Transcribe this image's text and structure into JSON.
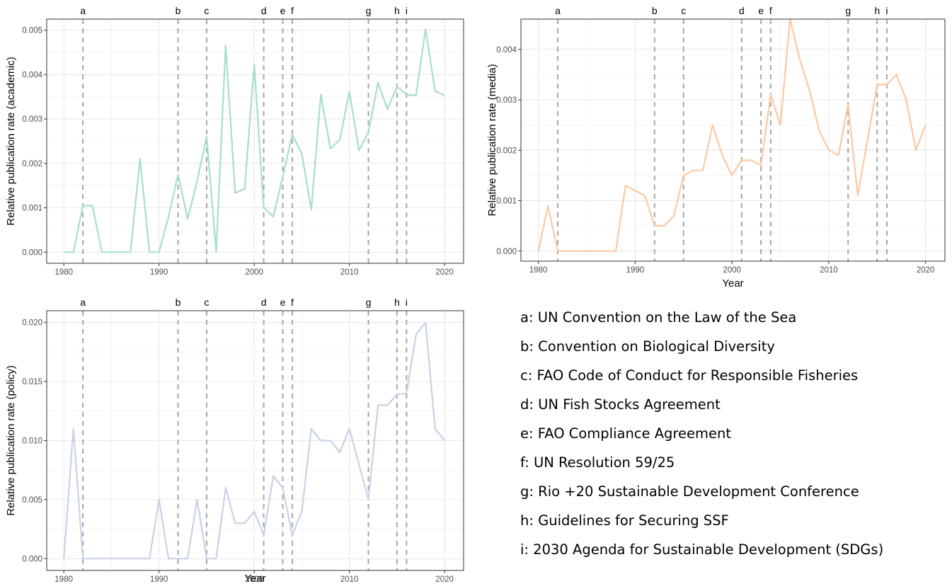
{
  "chart_data": [
    {
      "type": "line",
      "ylabel": "Relative publication rate (academic)",
      "xlabel": "",
      "xlim": [
        1978.2,
        2022
      ],
      "ylim": [
        -0.00025,
        0.00525
      ],
      "x_ticks": [
        1980,
        1990,
        2000,
        2010,
        2020
      ],
      "y_ticks": [
        0.0,
        0.001,
        0.002,
        0.003,
        0.004,
        0.005
      ],
      "y_tick_labels": [
        "0.000",
        "0.001",
        "0.002",
        "0.003",
        "0.004",
        "0.005"
      ],
      "grid": true,
      "color": "#a8dfc7",
      "series": [
        {
          "x": [
            1980,
            1981,
            1982,
            1983,
            1984,
            1985,
            1986,
            1987,
            1988,
            1989,
            1990,
            1991,
            1992,
            1993,
            1994,
            1995,
            1996,
            1997,
            1998,
            1999,
            2000,
            2001,
            2002,
            2003,
            2004,
            2005,
            2006,
            2007,
            2008,
            2009,
            2010,
            2011,
            2012,
            2013,
            2014,
            2015,
            2016,
            2017,
            2018,
            2019,
            2020
          ],
          "values": [
            0,
            0,
            0.00105,
            0.00105,
            0,
            0,
            0,
            0,
            0.0021,
            0,
            0,
            0.0008,
            0.00175,
            0.00075,
            0.0016,
            0.0026,
            0,
            0.00465,
            0.00133,
            0.00143,
            0.00423,
            0.001,
            0.0008,
            0.0017,
            0.00265,
            0.00222,
            0.00095,
            0.00355,
            0.00233,
            0.00253,
            0.00362,
            0.00229,
            0.0027,
            0.00382,
            0.00322,
            0.00373,
            0.00355,
            0.00353,
            0.00502,
            0.00363,
            0.00353
          ]
        }
      ],
      "events": [
        {
          "label": "a",
          "year": 1982
        },
        {
          "label": "b",
          "year": 1992
        },
        {
          "label": "c",
          "year": 1995
        },
        {
          "label": "d",
          "year": 2001
        },
        {
          "label": "e",
          "year": 2003
        },
        {
          "label": "f",
          "year": 2004
        },
        {
          "label": "g",
          "year": 2012
        },
        {
          "label": "h",
          "year": 2015
        },
        {
          "label": "i",
          "year": 2016
        }
      ]
    },
    {
      "type": "line",
      "ylabel": "Relative publication rate (media)",
      "xlabel": "Year",
      "xlim": [
        1978.2,
        2022
      ],
      "ylim": [
        -0.0002,
        0.0046
      ],
      "x_ticks": [
        1980,
        1990,
        2000,
        2010,
        2020
      ],
      "y_ticks": [
        0.0,
        0.001,
        0.002,
        0.003,
        0.004
      ],
      "y_tick_labels": [
        "0.000",
        "0.001",
        "0.002",
        "0.003",
        "0.004"
      ],
      "grid": true,
      "color": "#fbc9a2",
      "series": [
        {
          "x": [
            1980,
            1981,
            1982,
            1983,
            1984,
            1985,
            1986,
            1987,
            1988,
            1989,
            1990,
            1991,
            1992,
            1993,
            1994,
            1995,
            1996,
            1997,
            1998,
            1999,
            2000,
            2001,
            2002,
            2003,
            2004,
            2005,
            2006,
            2007,
            2008,
            2009,
            2010,
            2011,
            2012,
            2013,
            2014,
            2015,
            2016,
            2017,
            2018,
            2019,
            2020
          ],
          "values": [
            0,
            0.0009,
            0,
            0,
            0,
            0,
            0,
            0,
            0,
            0.0013,
            0.0012,
            0.0011,
            0.0005,
            0.0005,
            0.0007,
            0.0015,
            0.0016,
            0.0016,
            0.0025,
            0.0019,
            0.0015,
            0.0018,
            0.0018,
            0.0017,
            0.0031,
            0.0025,
            0.0046,
            0.0038,
            0.0032,
            0.0024,
            0.002,
            0.0019,
            0.0029,
            0.0011,
            0.0022,
            0.0033,
            0.0033,
            0.0035,
            0.003,
            0.002,
            0.0025
          ]
        }
      ],
      "events": [
        {
          "label": "a",
          "year": 1982
        },
        {
          "label": "b",
          "year": 1992
        },
        {
          "label": "c",
          "year": 1995
        },
        {
          "label": "d",
          "year": 2001
        },
        {
          "label": "e",
          "year": 2003
        },
        {
          "label": "f",
          "year": 2004
        },
        {
          "label": "g",
          "year": 2012
        },
        {
          "label": "h",
          "year": 2015
        },
        {
          "label": "i",
          "year": 2016
        }
      ]
    },
    {
      "type": "line",
      "ylabel": "Relative publication rate (policy)",
      "xlabel": "Year",
      "xlim": [
        1978.2,
        2022
      ],
      "ylim": [
        -0.001,
        0.021
      ],
      "x_ticks": [
        1980,
        1990,
        2000,
        2010,
        2020
      ],
      "y_ticks": [
        0.0,
        0.005,
        0.01,
        0.015,
        0.02
      ],
      "y_tick_labels": [
        "0.000",
        "0.005",
        "0.010",
        "0.015",
        "0.020"
      ],
      "grid": true,
      "color": "#c7d3e6",
      "series": [
        {
          "x": [
            1980,
            1981,
            1982,
            1983,
            1984,
            1985,
            1986,
            1987,
            1988,
            1989,
            1990,
            1991,
            1992,
            1993,
            1994,
            1995,
            1996,
            1997,
            1998,
            1999,
            2000,
            2001,
            2002,
            2003,
            2004,
            2005,
            2006,
            2007,
            2008,
            2009,
            2010,
            2011,
            2012,
            2013,
            2014,
            2015,
            2016,
            2017,
            2018,
            2019,
            2020
          ],
          "values": [
            0,
            0.011,
            0,
            0,
            0,
            0,
            0,
            0,
            0,
            0,
            0.005,
            0,
            0,
            0,
            0.005,
            0,
            0,
            0.006,
            0.003,
            0.003,
            0.004,
            0.002,
            0.007,
            0.006,
            0.002,
            0.004,
            0.011,
            0.01,
            0.01,
            0.009,
            0.011,
            0.008,
            0.005,
            0.013,
            0.013,
            0.0139,
            0.014,
            0.019,
            0.02,
            0.011,
            0.01
          ]
        }
      ],
      "events": [
        {
          "label": "a",
          "year": 1982
        },
        {
          "label": "b",
          "year": 1992
        },
        {
          "label": "c",
          "year": 1995
        },
        {
          "label": "d",
          "year": 2001
        },
        {
          "label": "e",
          "year": 2003
        },
        {
          "label": "f",
          "year": 2004
        },
        {
          "label": "g",
          "year": 2012
        },
        {
          "label": "h",
          "year": 2015
        },
        {
          "label": "i",
          "year": 2016
        }
      ]
    }
  ],
  "legend": [
    "a: UN Convention on the Law of the Sea",
    "b: Convention on Biological Diversity",
    "c: FAO Code of Conduct for Responsible Fisheries",
    "d: UN Fish Stocks Agreement",
    "e: FAO Compliance Agreement",
    "f: UN Resolution 59/25",
    "g: Rio +20 Sustainable Development Conference",
    "h: Guidelines for Securing SSF",
    "i: 2030 Agenda for Sustainable Development (SDGs)"
  ]
}
